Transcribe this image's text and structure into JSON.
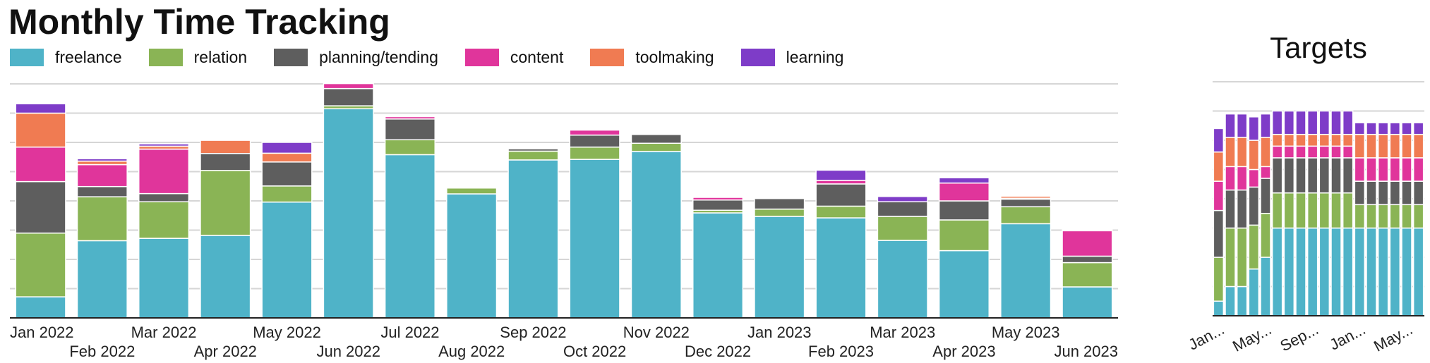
{
  "title": "Monthly Time Tracking",
  "side_title": "Targets",
  "legend": [
    {
      "label": "freelance",
      "color": "#4fb3c8"
    },
    {
      "label": "relation",
      "color": "#8ab455"
    },
    {
      "label": "planning/tending",
      "color": "#5e5e5e"
    },
    {
      "label": "content",
      "color": "#e0359b"
    },
    {
      "label": "toolmaking",
      "color": "#f07b52"
    },
    {
      "label": "learning",
      "color": "#7e3cc8"
    }
  ],
  "chart_data": [
    {
      "type": "bar",
      "stacked": true,
      "title": "Monthly Time Tracking",
      "grid": true,
      "legend_placement": "top-left",
      "ylim": [
        0,
        8
      ],
      "categories": [
        "Jan 2022",
        "Feb 2022",
        "Mar 2022",
        "Apr 2022",
        "May 2022",
        "Jun 2022",
        "Jul 2022",
        "Aug 2022",
        "Sep 2022",
        "Oct 2022",
        "Nov 2022",
        "Dec 2022",
        "Jan 2023",
        "Feb 2023",
        "Mar 2023",
        "Apr 2023",
        "May 2023",
        "Jun 2023"
      ],
      "series": [
        {
          "name": "freelance",
          "color": "#4fb3c8",
          "values": [
            0.72,
            2.64,
            2.72,
            2.82,
            3.96,
            7.15,
            5.58,
            4.24,
            5.4,
            5.42,
            5.69,
            3.59,
            3.47,
            3.42,
            2.65,
            2.3,
            3.22,
            1.06
          ]
        },
        {
          "name": "relation",
          "color": "#8ab455",
          "values": [
            2.18,
            1.5,
            1.25,
            2.22,
            0.55,
            0.1,
            0.51,
            0.2,
            0.3,
            0.42,
            0.28,
            0.09,
            0.25,
            0.4,
            0.82,
            1.05,
            0.58,
            0.83
          ]
        },
        {
          "name": "planning/tending",
          "color": "#5e5e5e",
          "values": [
            1.76,
            0.35,
            0.28,
            0.58,
            0.82,
            0.59,
            0.71,
            0.0,
            0.08,
            0.41,
            0.3,
            0.35,
            0.36,
            0.76,
            0.5,
            0.65,
            0.26,
            0.22
          ]
        },
        {
          "name": "content",
          "color": "#e0359b",
          "values": [
            1.18,
            0.75,
            1.52,
            0.0,
            0.0,
            0.17,
            0.08,
            0.0,
            0.0,
            0.17,
            0.0,
            0.09,
            0.0,
            0.12,
            0.0,
            0.61,
            0.03,
            0.87
          ]
        },
        {
          "name": "toolmaking",
          "color": "#f07b52",
          "values": [
            1.16,
            0.12,
            0.1,
            0.45,
            0.3,
            0.0,
            0.0,
            0.0,
            0.0,
            0.0,
            0.0,
            0.0,
            0.0,
            0.0,
            0.0,
            0.0,
            0.07,
            0.03
          ]
        },
        {
          "name": "learning",
          "color": "#7e3cc8",
          "values": [
            0.32,
            0.08,
            0.08,
            0.0,
            0.37,
            0.0,
            0.0,
            0.0,
            0.0,
            0.0,
            0.0,
            0.0,
            0.0,
            0.35,
            0.18,
            0.18,
            0.0,
            0.0
          ]
        }
      ]
    },
    {
      "type": "bar",
      "stacked": true,
      "title": "Targets",
      "grid": true,
      "ylim": [
        0,
        8
      ],
      "categories": [
        "Jan 2022",
        "Feb 2022",
        "Mar 2022",
        "Apr 2022",
        "May 2022",
        "Jun 2022",
        "Jul 2022",
        "Aug 2022",
        "Sep 2022",
        "Oct 2022",
        "Nov 2022",
        "Dec 2022",
        "Jan 2023",
        "Feb 2023",
        "Mar 2023",
        "Apr 2023",
        "May 2023",
        "Jun 2023"
      ],
      "tick_labels": [
        "Jan...",
        "May...",
        "Sep...",
        "Jan...",
        "May..."
      ],
      "tick_label_indices": [
        0,
        4,
        8,
        12,
        16
      ],
      "series": [
        {
          "name": "freelance",
          "color": "#4fb3c8",
          "values": [
            0.5,
            1.0,
            1.0,
            1.6,
            2.0,
            3.0,
            3.0,
            3.0,
            3.0,
            3.0,
            3.0,
            3.0,
            3.0,
            3.0,
            3.0,
            3.0,
            3.0,
            3.0
          ]
        },
        {
          "name": "relation",
          "color": "#8ab455",
          "values": [
            1.5,
            2.0,
            2.0,
            1.5,
            1.5,
            1.2,
            1.2,
            1.2,
            1.2,
            1.2,
            1.2,
            1.2,
            0.8,
            0.8,
            0.8,
            0.8,
            0.8,
            0.8
          ]
        },
        {
          "name": "planning/tending",
          "color": "#5e5e5e",
          "values": [
            1.6,
            1.3,
            1.3,
            1.3,
            1.2,
            1.2,
            1.2,
            1.2,
            1.2,
            1.2,
            1.2,
            1.2,
            0.8,
            0.8,
            0.8,
            0.8,
            0.8,
            0.8
          ]
        },
        {
          "name": "content",
          "color": "#e0359b",
          "values": [
            1.0,
            0.8,
            0.8,
            0.6,
            0.4,
            0.4,
            0.4,
            0.4,
            0.4,
            0.4,
            0.4,
            0.4,
            0.8,
            0.8,
            0.8,
            0.8,
            0.8,
            0.8
          ]
        },
        {
          "name": "toolmaking",
          "color": "#f07b52",
          "values": [
            1.0,
            1.0,
            1.0,
            1.0,
            1.0,
            0.4,
            0.4,
            0.4,
            0.4,
            0.4,
            0.4,
            0.4,
            0.8,
            0.8,
            0.8,
            0.8,
            0.8,
            0.8
          ]
        },
        {
          "name": "learning",
          "color": "#7e3cc8",
          "values": [
            0.8,
            0.8,
            0.8,
            0.8,
            0.8,
            0.8,
            0.8,
            0.8,
            0.8,
            0.8,
            0.8,
            0.8,
            0.4,
            0.4,
            0.4,
            0.4,
            0.4,
            0.4
          ]
        }
      ]
    }
  ]
}
